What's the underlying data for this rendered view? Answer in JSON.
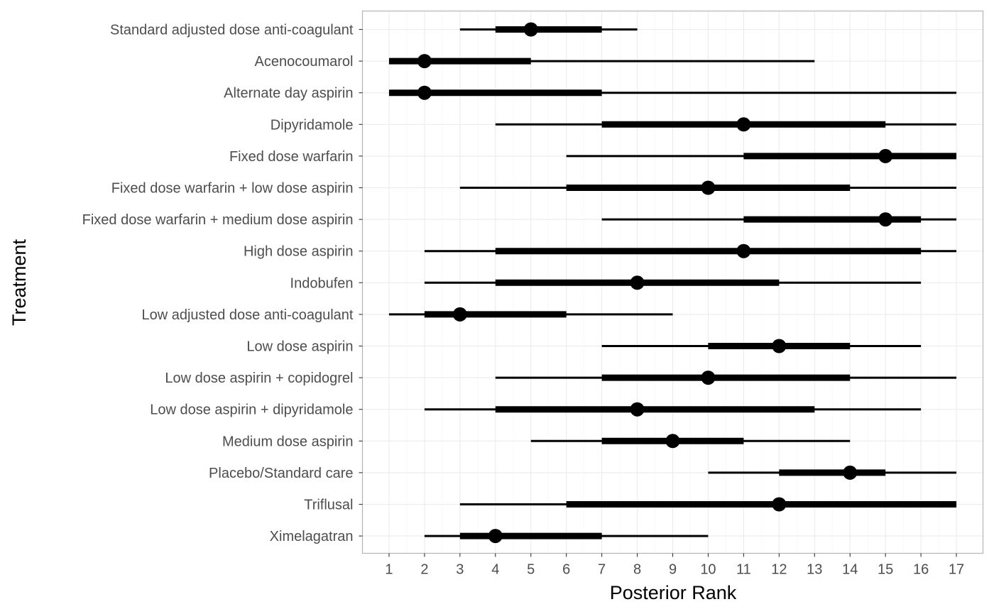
{
  "chart_data": {
    "type": "interval",
    "xlabel": "Posterior Rank",
    "ylabel": "Treatment",
    "xlim": [
      0.25,
      17.75
    ],
    "xticks": [
      1,
      2,
      3,
      4,
      5,
      6,
      7,
      8,
      9,
      10,
      11,
      12,
      13,
      14,
      15,
      16,
      17
    ],
    "grid": true,
    "treatments": [
      {
        "label": "Standard adjusted dose anti-coagulant",
        "median": 5,
        "inner": [
          4,
          7
        ],
        "outer": [
          3,
          8
        ]
      },
      {
        "label": "Acenocoumarol",
        "median": 2,
        "inner": [
          1,
          5
        ],
        "outer": [
          1,
          13
        ]
      },
      {
        "label": "Alternate day aspirin",
        "median": 2,
        "inner": [
          1,
          7
        ],
        "outer": [
          1,
          17
        ]
      },
      {
        "label": "Dipyridamole",
        "median": 11,
        "inner": [
          7,
          15
        ],
        "outer": [
          4,
          17
        ]
      },
      {
        "label": "Fixed dose warfarin",
        "median": 15,
        "inner": [
          11,
          17
        ],
        "outer": [
          6,
          17
        ]
      },
      {
        "label": "Fixed dose warfarin + low dose aspirin",
        "median": 10,
        "inner": [
          6,
          14
        ],
        "outer": [
          3,
          17
        ]
      },
      {
        "label": "Fixed dose warfarin + medium dose aspirin",
        "median": 15,
        "inner": [
          11,
          16
        ],
        "outer": [
          7,
          17
        ]
      },
      {
        "label": "High dose aspirin",
        "median": 11,
        "inner": [
          4,
          16
        ],
        "outer": [
          2,
          17
        ]
      },
      {
        "label": "Indobufen",
        "median": 8,
        "inner": [
          4,
          12
        ],
        "outer": [
          2,
          16
        ]
      },
      {
        "label": "Low adjusted dose anti-coagulant",
        "median": 3,
        "inner": [
          2,
          6
        ],
        "outer": [
          1,
          9
        ]
      },
      {
        "label": "Low dose aspirin",
        "median": 12,
        "inner": [
          10,
          14
        ],
        "outer": [
          7,
          16
        ]
      },
      {
        "label": "Low dose aspirin + copidogrel",
        "median": 10,
        "inner": [
          7,
          14
        ],
        "outer": [
          4,
          17
        ]
      },
      {
        "label": "Low dose aspirin + dipyridamole",
        "median": 8,
        "inner": [
          4,
          13
        ],
        "outer": [
          2,
          16
        ]
      },
      {
        "label": "Medium dose aspirin",
        "median": 9,
        "inner": [
          7,
          11
        ],
        "outer": [
          5,
          14
        ]
      },
      {
        "label": "Placebo/Standard care",
        "median": 14,
        "inner": [
          12,
          15
        ],
        "outer": [
          10,
          17
        ]
      },
      {
        "label": "Triflusal",
        "median": 12,
        "inner": [
          6,
          17
        ],
        "outer": [
          3,
          17
        ]
      },
      {
        "label": "Ximelagatran",
        "median": 4,
        "inner": [
          3,
          7
        ],
        "outer": [
          2,
          10
        ]
      }
    ]
  }
}
